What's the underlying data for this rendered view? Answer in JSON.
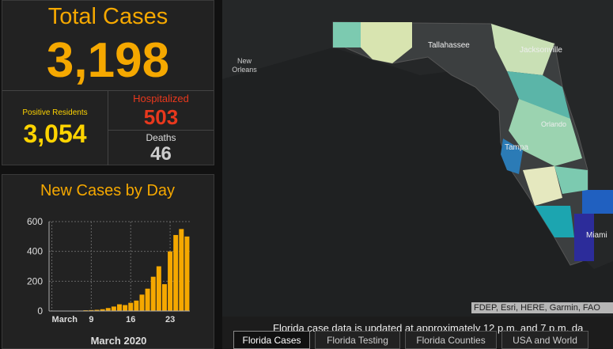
{
  "totals": {
    "total_label": "Total Cases",
    "total_value": "3,198",
    "residents_label": "Positive Residents",
    "residents_value": "3,054",
    "hospitalized_label": "Hospitalized",
    "hospitalized_value": "503",
    "deaths_label": "Deaths",
    "deaths_value": "46"
  },
  "chart_data": {
    "type": "bar",
    "title": "New Cases by Day",
    "x_label": "March 2020",
    "categories": [
      "March",
      null,
      null,
      null,
      null,
      null,
      null,
      "9",
      null,
      null,
      null,
      null,
      null,
      null,
      "16",
      null,
      null,
      null,
      null,
      null,
      null,
      "23",
      null,
      null,
      null
    ],
    "values": [
      0,
      0,
      1,
      2,
      2,
      3,
      5,
      6,
      8,
      12,
      20,
      30,
      45,
      40,
      55,
      70,
      110,
      150,
      230,
      300,
      180,
      400,
      510,
      550,
      500
    ],
    "color": "#f5a800",
    "ylim": [
      0,
      600
    ],
    "yticks": [
      0,
      200,
      400,
      600
    ],
    "grid": true
  },
  "map": {
    "labels": [
      "Tallahassee",
      "Jacksonville",
      "New",
      "Orleans",
      "Orlando",
      "Tampa",
      "Miami"
    ],
    "attribution": "FDEP, Esri, HERE, Garmin, FAO"
  },
  "footer": {
    "note": "Florida case data is updated at approximately 12 p.m. and 7 p.m. da"
  },
  "tabs": [
    "Florida Cases",
    "Florida Testing",
    "Florida Counties",
    "USA and World"
  ]
}
